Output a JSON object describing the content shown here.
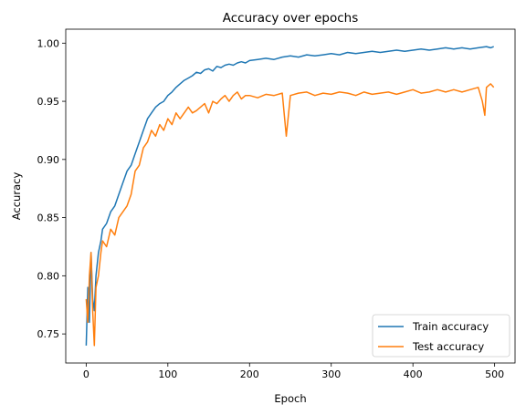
{
  "chart_data": {
    "type": "line",
    "title": "Accuracy over epochs",
    "xlabel": "Epoch",
    "ylabel": "Accuracy",
    "xlim": [
      -25,
      525
    ],
    "ylim": [
      0.725,
      1.012
    ],
    "xticks": [
      0,
      100,
      200,
      300,
      400,
      500
    ],
    "xtick_labels": [
      "0",
      "100",
      "200",
      "300",
      "400",
      "500"
    ],
    "yticks": [
      0.75,
      0.8,
      0.85,
      0.9,
      0.95,
      1.0
    ],
    "ytick_labels": [
      "0.75",
      "0.80",
      "0.85",
      "0.90",
      "0.95",
      "1.00"
    ],
    "grid": false,
    "legend_position": "lower-right",
    "series": [
      {
        "name": "Train accuracy",
        "color": "#1f77b4",
        "x": [
          0,
          2,
          4,
          6,
          8,
          10,
          12,
          15,
          18,
          20,
          25,
          30,
          35,
          40,
          45,
          50,
          55,
          60,
          65,
          70,
          75,
          80,
          85,
          90,
          95,
          100,
          105,
          110,
          115,
          120,
          125,
          130,
          135,
          140,
          145,
          150,
          155,
          160,
          165,
          170,
          175,
          180,
          185,
          190,
          195,
          200,
          210,
          220,
          230,
          240,
          250,
          260,
          270,
          280,
          290,
          300,
          310,
          320,
          330,
          340,
          350,
          360,
          370,
          380,
          390,
          400,
          410,
          420,
          430,
          440,
          450,
          460,
          470,
          480,
          490,
          495,
          499
        ],
        "values": [
          0.74,
          0.79,
          0.76,
          0.82,
          0.78,
          0.77,
          0.8,
          0.82,
          0.83,
          0.84,
          0.845,
          0.855,
          0.86,
          0.87,
          0.88,
          0.89,
          0.895,
          0.905,
          0.915,
          0.925,
          0.935,
          0.94,
          0.945,
          0.948,
          0.95,
          0.955,
          0.958,
          0.962,
          0.965,
          0.968,
          0.97,
          0.972,
          0.975,
          0.974,
          0.977,
          0.978,
          0.976,
          0.98,
          0.979,
          0.981,
          0.982,
          0.981,
          0.983,
          0.984,
          0.983,
          0.985,
          0.986,
          0.987,
          0.986,
          0.988,
          0.989,
          0.988,
          0.99,
          0.989,
          0.99,
          0.991,
          0.99,
          0.992,
          0.991,
          0.992,
          0.993,
          0.992,
          0.993,
          0.994,
          0.993,
          0.994,
          0.995,
          0.994,
          0.995,
          0.996,
          0.995,
          0.996,
          0.995,
          0.996,
          0.997,
          0.996,
          0.997
        ]
      },
      {
        "name": "Test accuracy",
        "color": "#ff7f0e",
        "x": [
          0,
          2,
          4,
          6,
          8,
          10,
          12,
          15,
          18,
          20,
          25,
          30,
          35,
          40,
          45,
          50,
          55,
          60,
          65,
          70,
          75,
          80,
          85,
          90,
          95,
          100,
          105,
          110,
          115,
          120,
          125,
          130,
          135,
          140,
          145,
          150,
          155,
          160,
          165,
          170,
          175,
          180,
          185,
          190,
          195,
          200,
          210,
          220,
          230,
          240,
          245,
          250,
          260,
          270,
          280,
          290,
          300,
          310,
          320,
          330,
          340,
          350,
          360,
          370,
          380,
          390,
          400,
          410,
          420,
          430,
          440,
          450,
          460,
          470,
          480,
          485,
          488,
          490,
          495,
          499
        ],
        "values": [
          0.78,
          0.76,
          0.8,
          0.82,
          0.77,
          0.74,
          0.79,
          0.8,
          0.82,
          0.83,
          0.825,
          0.84,
          0.835,
          0.85,
          0.855,
          0.86,
          0.87,
          0.89,
          0.895,
          0.91,
          0.915,
          0.925,
          0.92,
          0.93,
          0.925,
          0.935,
          0.93,
          0.94,
          0.935,
          0.94,
          0.945,
          0.94,
          0.942,
          0.945,
          0.948,
          0.94,
          0.95,
          0.948,
          0.952,
          0.955,
          0.95,
          0.955,
          0.958,
          0.952,
          0.955,
          0.955,
          0.953,
          0.956,
          0.955,
          0.957,
          0.92,
          0.955,
          0.957,
          0.958,
          0.955,
          0.957,
          0.956,
          0.958,
          0.957,
          0.955,
          0.958,
          0.956,
          0.957,
          0.958,
          0.956,
          0.958,
          0.96,
          0.957,
          0.958,
          0.96,
          0.958,
          0.96,
          0.958,
          0.96,
          0.962,
          0.95,
          0.938,
          0.962,
          0.965,
          0.962
        ]
      }
    ]
  }
}
